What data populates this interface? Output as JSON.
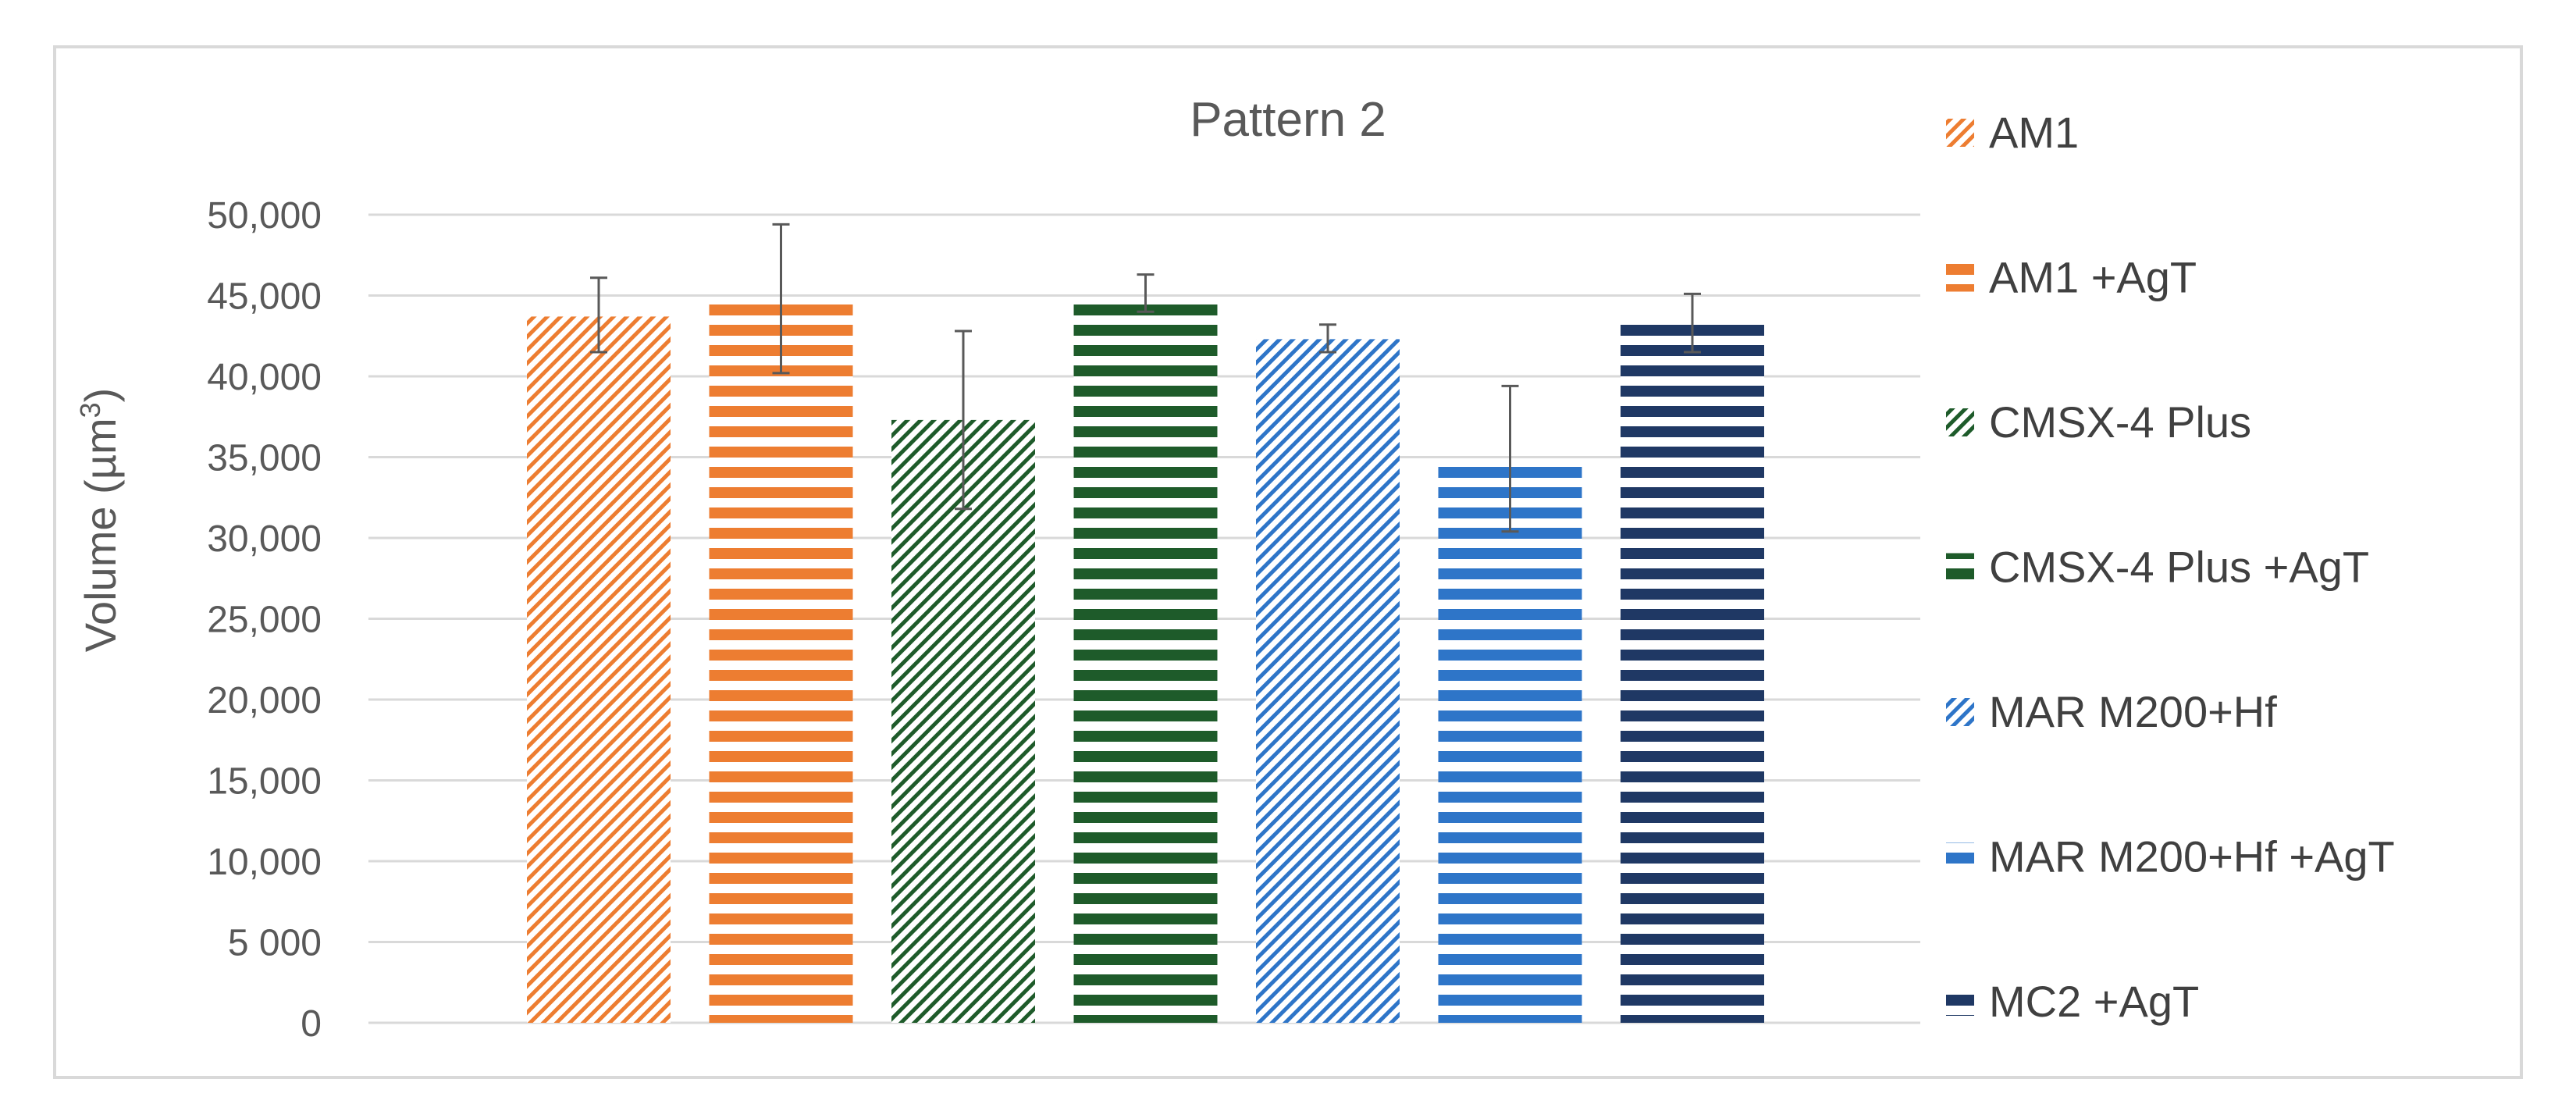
{
  "chart_data": {
    "type": "bar",
    "title": "Pattern 2",
    "ylabel": "Volume (µm",
    "ylabel_sup": "3",
    "ylabel_close": ")",
    "xlabel": "",
    "ylim": [
      0,
      50000
    ],
    "yticks": [
      0,
      5000,
      10000,
      15000,
      20000,
      25000,
      30000,
      35000,
      40000,
      45000,
      50000
    ],
    "ytick_labels": [
      "0",
      "5 000",
      "10,000",
      "15,000",
      "20,000",
      "25,000",
      "30,000",
      "35,000",
      "40,000",
      "45,000",
      "50,000"
    ],
    "grid": true,
    "legend_position": "right",
    "series": [
      {
        "name": "AM1",
        "value": 43700,
        "error_low": 41500,
        "error_high": 46100,
        "color": "#ED7D31",
        "pattern": "diagonal"
      },
      {
        "name": "AM1 +AgT",
        "value": 44800,
        "error_low": 40200,
        "error_high": 49400,
        "color": "#ED7D31",
        "pattern": "horizontal"
      },
      {
        "name": "CMSX-4 Plus",
        "value": 37300,
        "error_low": 31800,
        "error_high": 42800,
        "color": "#1E5B2A",
        "pattern": "diagonal"
      },
      {
        "name": "CMSX-4 Plus +AgT",
        "value": 44900,
        "error_low": 44000,
        "error_high": 46300,
        "color": "#1E5B2A",
        "pattern": "horizontal"
      },
      {
        "name": "MAR M200+Hf",
        "value": 42300,
        "error_low": 41500,
        "error_high": 43200,
        "color": "#2E75C8",
        "pattern": "diagonal"
      },
      {
        "name": "MAR M200+Hf +AgT",
        "value": 34900,
        "error_low": 30400,
        "error_high": 39400,
        "color": "#2E75C8",
        "pattern": "horizontal"
      },
      {
        "name": "MC2 +AgT",
        "value": 43200,
        "error_low": 41500,
        "error_high": 45100,
        "color": "#1F3864",
        "pattern": "horizontal"
      }
    ]
  }
}
